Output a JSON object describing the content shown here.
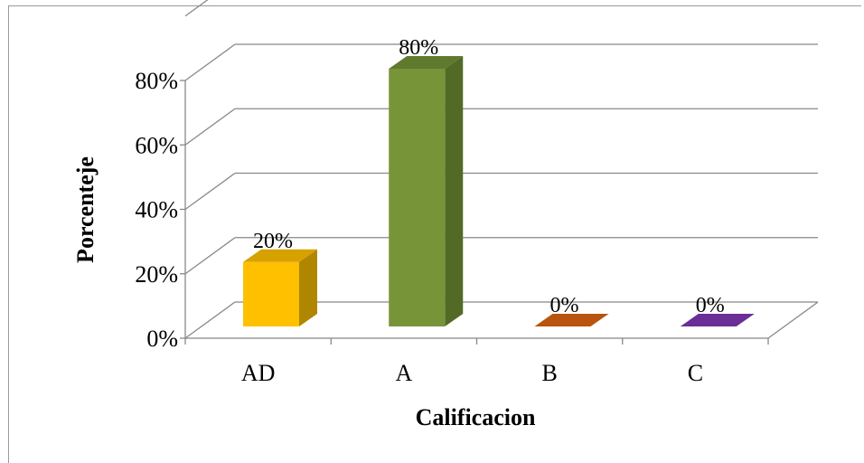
{
  "chart_data": {
    "type": "bar",
    "title": "",
    "xlabel": "Calificacion",
    "ylabel": "Porcenteje",
    "categories": [
      "AD",
      "A",
      "B",
      "C"
    ],
    "values": [
      20,
      80,
      0,
      0
    ],
    "value_labels": [
      "20%",
      "80%",
      "0%",
      "0%"
    ],
    "y_ticks": [
      0,
      20,
      40,
      60,
      80
    ],
    "y_tick_labels": [
      "0%",
      "20%",
      "40%",
      "60%",
      "80%"
    ],
    "ylim": [
      0,
      80
    ],
    "grid": true,
    "legend": "none",
    "three_d": true,
    "colors": {
      "AD": {
        "front": "#FFC000",
        "side": "#B08600",
        "top": "#D7A100"
      },
      "A": {
        "front": "#779438",
        "side": "#536A27",
        "top": "#5F7A2D"
      },
      "B": {
        "front": "#C55A11",
        "side": "#8D400B",
        "top": "#B85410"
      },
      "C": {
        "front": "#7030A0",
        "side": "#4E2170",
        "top": "#6A2E96"
      },
      "gridline": "#888888"
    }
  }
}
